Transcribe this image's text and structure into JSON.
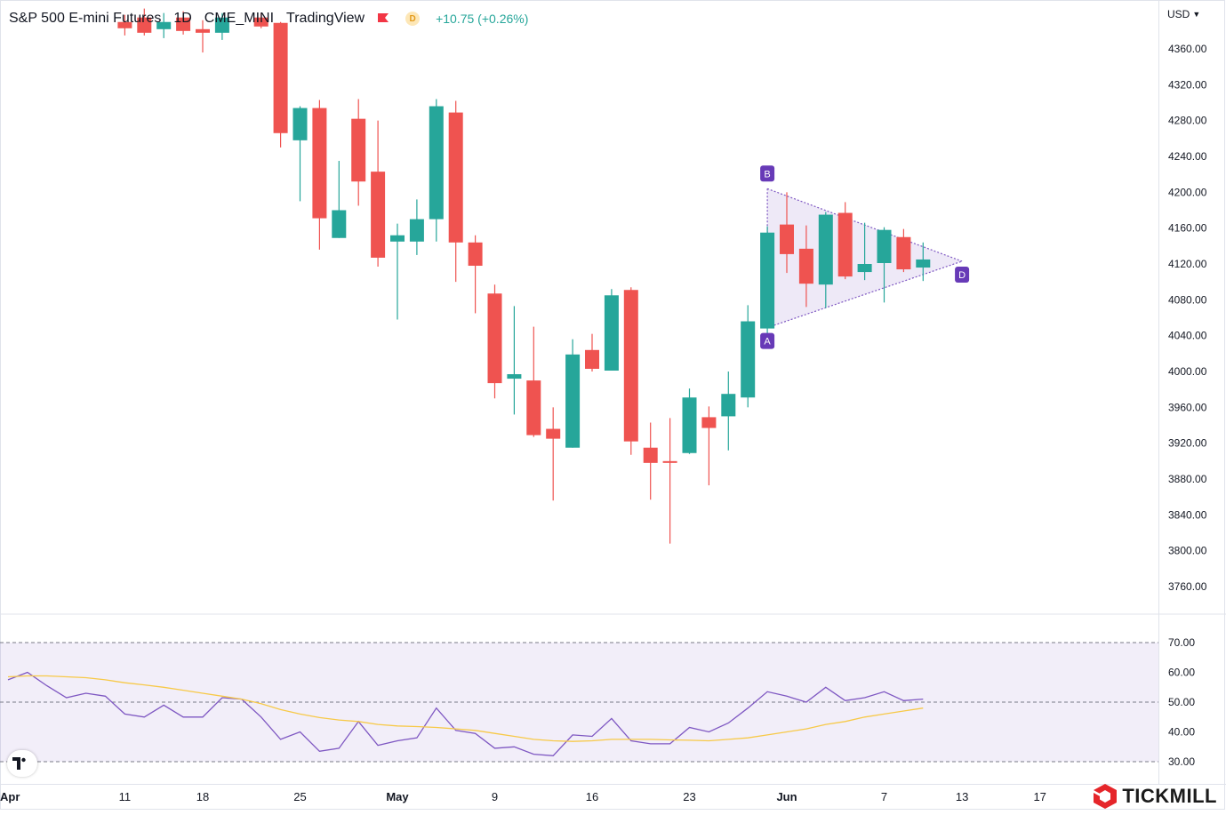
{
  "header": {
    "symbol": "S&P 500 E-mini Futures",
    "interval": "1D",
    "exchange": "CME_MINI",
    "source": "TradingView",
    "badge": "D",
    "change": "+10.75 (+0.26%)",
    "colors": {
      "up": "#26a69a",
      "down": "#ef5350",
      "flag": "#f23645"
    }
  },
  "currency_label": "USD",
  "brand": {
    "name": "TICKMILL",
    "color": "#e5252a"
  },
  "chart_data": [
    {
      "type": "candlestick",
      "ylim": [
        3720,
        4385
      ],
      "y_ticks": [
        "4360.00",
        "4320.00",
        "4280.00",
        "4240.00",
        "4200.00",
        "4160.00",
        "4120.00",
        "4080.00",
        "4040.00",
        "4000.00",
        "3960.00",
        "3920.00",
        "3880.00",
        "3840.00",
        "3800.00",
        "3760.00"
      ],
      "x_ticks": [
        {
          "idx": 0,
          "label": "Apr"
        },
        {
          "idx": 6,
          "label": "11"
        },
        {
          "idx": 10,
          "label": "18"
        },
        {
          "idx": 15,
          "label": "25"
        },
        {
          "idx": 20,
          "label": "May"
        },
        {
          "idx": 25,
          "label": "9"
        },
        {
          "idx": 30,
          "label": "16"
        },
        {
          "idx": 35,
          "label": "23"
        },
        {
          "idx": 40,
          "label": "Jun"
        },
        {
          "idx": 45,
          "label": "7"
        },
        {
          "idx": 49,
          "label": "13"
        },
        {
          "idx": 53,
          "label": "17"
        }
      ],
      "candles": [
        {
          "i": 6,
          "o": 4390,
          "h": 4398,
          "l": 4375,
          "c": 4383
        },
        {
          "i": 7,
          "o": 4395,
          "h": 4405,
          "l": 4375,
          "c": 4378
        },
        {
          "i": 8,
          "o": 4382,
          "h": 4400,
          "l": 4372,
          "c": 4390
        },
        {
          "i": 9,
          "o": 4395,
          "h": 4402,
          "l": 4376,
          "c": 4380
        },
        {
          "i": 10,
          "o": 4382,
          "h": 4392,
          "l": 4356,
          "c": 4378
        },
        {
          "i": 11,
          "o": 4378,
          "h": 4400,
          "l": 4370,
          "c": 4395
        },
        {
          "i": 13,
          "o": 4395,
          "h": 4400,
          "l": 4383,
          "c": 4385
        },
        {
          "i": 14,
          "o": 4389,
          "h": 4390,
          "l": 4250,
          "c": 4266
        },
        {
          "i": 15,
          "o": 4258,
          "h": 4296,
          "l": 4190,
          "c": 4294
        },
        {
          "i": 16,
          "o": 4294,
          "h": 4303,
          "l": 4136,
          "c": 4171
        },
        {
          "i": 17,
          "o": 4149,
          "h": 4235,
          "l": 4149,
          "c": 4180
        },
        {
          "i": 18,
          "o": 4282,
          "h": 4304,
          "l": 4185,
          "c": 4212
        },
        {
          "i": 19,
          "o": 4223,
          "h": 4280,
          "l": 4117,
          "c": 4127
        },
        {
          "i": 20,
          "o": 4145,
          "h": 4165,
          "l": 4058,
          "c": 4152
        },
        {
          "i": 21,
          "o": 4145,
          "h": 4192,
          "l": 4130,
          "c": 4170
        },
        {
          "i": 22,
          "o": 4170,
          "h": 4304,
          "l": 4145,
          "c": 4296
        },
        {
          "i": 23,
          "o": 4289,
          "h": 4302,
          "l": 4100,
          "c": 4144
        },
        {
          "i": 24,
          "o": 4144,
          "h": 4152,
          "l": 4065,
          "c": 4118
        },
        {
          "i": 25,
          "o": 4087,
          "h": 4097,
          "l": 3970,
          "c": 3987
        },
        {
          "i": 26,
          "o": 3992,
          "h": 4073,
          "l": 3952,
          "c": 3997
        },
        {
          "i": 27,
          "o": 3990,
          "h": 4050,
          "l": 3927,
          "c": 3929
        },
        {
          "i": 28,
          "o": 3936,
          "h": 3960,
          "l": 3856,
          "c": 3925
        },
        {
          "i": 29,
          "o": 3915,
          "h": 4036,
          "l": 3915,
          "c": 4019
        },
        {
          "i": 30,
          "o": 4024,
          "h": 4042,
          "l": 4000,
          "c": 4003
        },
        {
          "i": 31,
          "o": 4001,
          "h": 4092,
          "l": 4001,
          "c": 4085
        },
        {
          "i": 32,
          "o": 4091,
          "h": 4094,
          "l": 3907,
          "c": 3922
        },
        {
          "i": 33,
          "o": 3915,
          "h": 3943,
          "l": 3857,
          "c": 3898
        },
        {
          "i": 34,
          "o": 3900,
          "h": 3948,
          "l": 3808,
          "c": 3899
        },
        {
          "i": 35,
          "o": 3909,
          "h": 3981,
          "l": 3908,
          "c": 3971
        },
        {
          "i": 36,
          "o": 3949,
          "h": 3961,
          "l": 3873,
          "c": 3937
        },
        {
          "i": 37,
          "o": 3950,
          "h": 4000,
          "l": 3912,
          "c": 3975
        },
        {
          "i": 38,
          "o": 3971,
          "h": 4074,
          "l": 3960,
          "c": 4056
        },
        {
          "i": 39,
          "o": 4048,
          "h": 4162,
          "l": 4036,
          "c": 4155
        },
        {
          "i": 40,
          "o": 4164,
          "h": 4200,
          "l": 4110,
          "c": 4131
        },
        {
          "i": 41,
          "o": 4137,
          "h": 4163,
          "l": 4072,
          "c": 4098
        },
        {
          "i": 42,
          "o": 4097,
          "h": 4178,
          "l": 4071,
          "c": 4175
        },
        {
          "i": 43,
          "o": 4177,
          "h": 4189,
          "l": 4103,
          "c": 4106
        },
        {
          "i": 44,
          "o": 4111,
          "h": 4166,
          "l": 4102,
          "c": 4120
        },
        {
          "i": 45,
          "o": 4121,
          "h": 4161,
          "l": 4077,
          "c": 4158
        },
        {
          "i": 46,
          "o": 4150,
          "h": 4159,
          "l": 4111,
          "c": 4114
        },
        {
          "i": 47,
          "o": 4116,
          "h": 4144,
          "l": 4101,
          "c": 4125
        }
      ],
      "pattern": {
        "points": [
          {
            "label": "B",
            "i": 39,
            "price": 4204
          },
          {
            "label": "D",
            "i": 49,
            "price": 4123
          },
          {
            "label": "A",
            "i": 39,
            "price": 4049
          }
        ],
        "fill": "#7e57c2"
      }
    },
    {
      "type": "line",
      "ylim": [
        27,
        74
      ],
      "y_ticks": [
        "70.00",
        "60.00",
        "50.00",
        "40.00",
        "30.00"
      ],
      "band": [
        30,
        70
      ],
      "mid": 50,
      "series": [
        {
          "color": "#7e57c2",
          "x": [
            0,
            1,
            2,
            3,
            4,
            5,
            6,
            7,
            8,
            9,
            10,
            11,
            12,
            13,
            14,
            15,
            16,
            17,
            18,
            19,
            20,
            21,
            22,
            23,
            24,
            25,
            26,
            27,
            28,
            29,
            30,
            31,
            32,
            33,
            34,
            35,
            36,
            37,
            38,
            39,
            40,
            41,
            42,
            43,
            44,
            45,
            46,
            47
          ],
          "y": [
            57.5,
            60.0,
            55.5,
            51.5,
            53.0,
            52.0,
            46.0,
            45.0,
            49.0,
            45.0,
            45.0,
            51.5,
            51.0,
            45.0,
            37.5,
            40.0,
            33.5,
            34.5,
            43.5,
            35.5,
            37.0,
            38.0,
            48.0,
            40.5,
            39.5,
            34.5,
            35.0,
            32.5,
            32.0,
            39.0,
            38.5,
            44.5,
            37.0,
            36.0,
            36.0,
            41.5,
            40.0,
            43.0,
            48.0,
            53.5,
            52.0,
            50.0,
            55.0,
            50.5,
            51.5,
            53.5,
            50.5,
            51.0
          ]
        },
        {
          "color": "#f7c948",
          "x": [
            0,
            1,
            2,
            3,
            4,
            5,
            6,
            7,
            8,
            9,
            10,
            11,
            12,
            13,
            14,
            15,
            16,
            17,
            18,
            19,
            20,
            21,
            22,
            23,
            24,
            25,
            26,
            27,
            28,
            29,
            30,
            31,
            32,
            33,
            34,
            35,
            36,
            37,
            38,
            39,
            40,
            41,
            42,
            43,
            44,
            45,
            46,
            47
          ],
          "y": [
            58.5,
            58.8,
            58.8,
            58.5,
            58.2,
            57.5,
            56.5,
            55.8,
            55.0,
            54.0,
            53.0,
            52.0,
            51.0,
            49.5,
            47.5,
            46.0,
            44.8,
            44.0,
            43.5,
            42.5,
            42.0,
            41.8,
            41.5,
            41.0,
            40.5,
            39.5,
            38.5,
            37.5,
            37.0,
            36.8,
            37.0,
            37.5,
            37.5,
            37.5,
            37.3,
            37.2,
            37.0,
            37.5,
            38.0,
            39.0,
            40.0,
            41.0,
            42.5,
            43.5,
            45.0,
            46.0,
            47.0,
            48.0
          ]
        }
      ]
    }
  ]
}
